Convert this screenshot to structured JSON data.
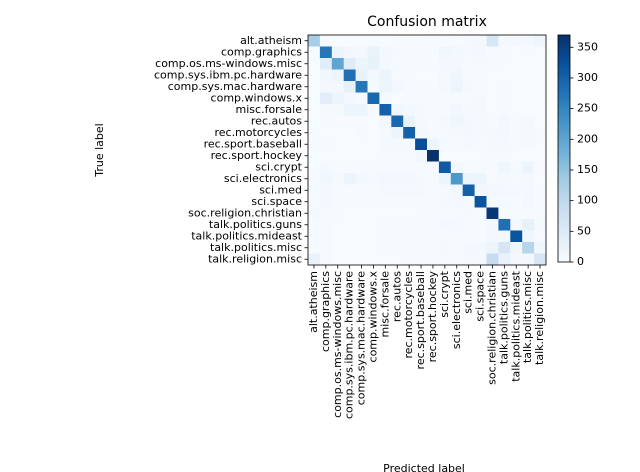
{
  "chart_data": {
    "type": "heatmap",
    "title": "Confusion matrix",
    "xlabel": "Predicted label",
    "ylabel": "True label",
    "colormap": "Blues",
    "xcategories": [
      "alt.atheism",
      "comp.graphics",
      "comp.os.ms-windows.misc",
      "comp.sys.ibm.pc.hardware",
      "comp.sys.mac.hardware",
      "comp.windows.x",
      "misc.forsale",
      "rec.autos",
      "rec.motorcycles",
      "rec.sport.baseball",
      "rec.sport.hockey",
      "sci.crypt",
      "sci.electronics",
      "sci.med",
      "sci.space",
      "soc.religion.christian",
      "talk.politics.guns",
      "talk.politics.mideast",
      "talk.politics.misc",
      "talk.religion.misc"
    ],
    "ycategories": [
      "alt.atheism",
      "comp.graphics",
      "comp.os.ms-windows.misc",
      "comp.sys.ibm.pc.hardware",
      "comp.sys.mac.hardware",
      "comp.windows.x",
      "misc.forsale",
      "rec.autos",
      "rec.motorcycles",
      "rec.sport.baseball",
      "rec.sport.hockey",
      "sci.crypt",
      "sci.electronics",
      "sci.med",
      "sci.space",
      "soc.religion.christian",
      "talk.politics.guns",
      "talk.politics.mideast",
      "talk.politics.misc",
      "talk.religion.misc"
    ],
    "z": [
      [
        130,
        2,
        1,
        0,
        1,
        1,
        1,
        3,
        4,
        3,
        2,
        2,
        3,
        6,
        10,
        60,
        10,
        8,
        10,
        17
      ],
      [
        1,
        270,
        20,
        12,
        10,
        25,
        8,
        5,
        3,
        2,
        1,
        15,
        10,
        6,
        10,
        2,
        2,
        1,
        2,
        1
      ],
      [
        1,
        40,
        200,
        45,
        20,
        30,
        10,
        4,
        2,
        3,
        2,
        8,
        8,
        3,
        5,
        2,
        1,
        1,
        1,
        1
      ],
      [
        0,
        12,
        20,
        280,
        25,
        8,
        20,
        3,
        2,
        1,
        1,
        5,
        15,
        2,
        2,
        0,
        1,
        0,
        0,
        0
      ],
      [
        0,
        10,
        10,
        30,
        270,
        3,
        20,
        8,
        3,
        2,
        1,
        5,
        20,
        5,
        4,
        1,
        2,
        0,
        1,
        0
      ],
      [
        1,
        40,
        20,
        8,
        5,
        290,
        6,
        1,
        2,
        2,
        1,
        4,
        3,
        3,
        5,
        1,
        2,
        0,
        1,
        0
      ],
      [
        0,
        5,
        5,
        20,
        20,
        3,
        300,
        15,
        8,
        5,
        3,
        3,
        12,
        5,
        5,
        1,
        3,
        1,
        1,
        0
      ],
      [
        1,
        3,
        2,
        2,
        3,
        1,
        12,
        290,
        25,
        5,
        3,
        5,
        15,
        8,
        5,
        3,
        8,
        2,
        6,
        1
      ],
      [
        2,
        1,
        1,
        1,
        2,
        1,
        5,
        20,
        300,
        8,
        3,
        3,
        5,
        8,
        6,
        5,
        10,
        2,
        6,
        2
      ],
      [
        2,
        2,
        1,
        1,
        1,
        1,
        5,
        5,
        6,
        330,
        20,
        3,
        3,
        5,
        4,
        6,
        5,
        2,
        6,
        1
      ],
      [
        1,
        1,
        1,
        0,
        1,
        1,
        2,
        2,
        3,
        12,
        370,
        1,
        1,
        1,
        1,
        2,
        2,
        0,
        1,
        0
      ],
      [
        1,
        5,
        3,
        2,
        3,
        2,
        3,
        2,
        2,
        3,
        2,
        310,
        10,
        3,
        5,
        2,
        15,
        3,
        20,
        2
      ],
      [
        2,
        15,
        6,
        20,
        12,
        5,
        12,
        10,
        8,
        5,
        3,
        20,
        220,
        18,
        20,
        2,
        5,
        2,
        5,
        1
      ],
      [
        4,
        8,
        2,
        2,
        2,
        2,
        5,
        6,
        6,
        5,
        4,
        5,
        12,
        300,
        12,
        12,
        10,
        5,
        8,
        3
      ],
      [
        2,
        8,
        2,
        2,
        3,
        2,
        4,
        4,
        4,
        3,
        2,
        5,
        8,
        5,
        320,
        5,
        6,
        3,
        8,
        2
      ],
      [
        8,
        2,
        2,
        0,
        1,
        1,
        1,
        1,
        1,
        2,
        1,
        2,
        2,
        5,
        3,
        360,
        3,
        3,
        2,
        3
      ],
      [
        3,
        2,
        1,
        0,
        1,
        1,
        4,
        4,
        3,
        3,
        3,
        8,
        5,
        3,
        4,
        10,
        280,
        8,
        30,
        6
      ],
      [
        4,
        2,
        1,
        1,
        0,
        1,
        2,
        2,
        3,
        3,
        2,
        3,
        2,
        2,
        3,
        10,
        8,
        320,
        15,
        2
      ],
      [
        3,
        2,
        1,
        0,
        1,
        1,
        2,
        3,
        3,
        3,
        2,
        5,
        3,
        8,
        8,
        20,
        60,
        15,
        110,
        15
      ],
      [
        25,
        2,
        1,
        0,
        0,
        0,
        1,
        1,
        3,
        2,
        1,
        3,
        3,
        5,
        5,
        90,
        25,
        8,
        10,
        60
      ]
    ],
    "clim": [
      0,
      370
    ],
    "cticks": [
      0,
      50,
      100,
      150,
      200,
      250,
      300,
      350
    ]
  }
}
